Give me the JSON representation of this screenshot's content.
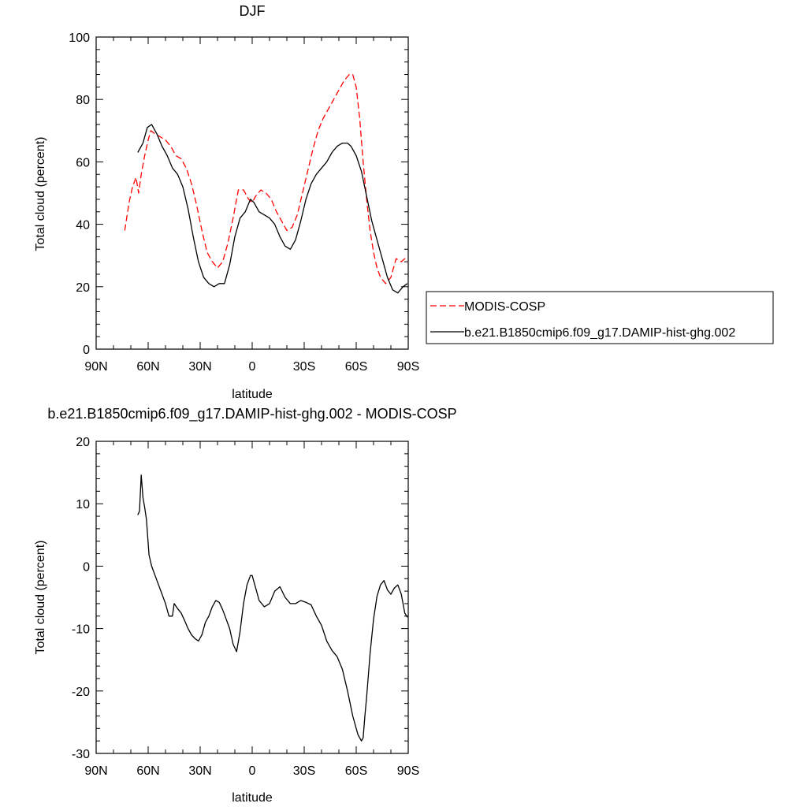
{
  "chart_data": [
    {
      "type": "line",
      "title": "DJF",
      "xlabel": "latitude",
      "ylabel": "Total cloud (percent)",
      "xlim": [
        90,
        -90
      ],
      "ylim": [
        0,
        100
      ],
      "xticks": [
        90,
        60,
        30,
        0,
        -30,
        -60,
        -90
      ],
      "xtick_labels": [
        "90N",
        "60N",
        "30N",
        "0",
        "30S",
        "60S",
        "90S"
      ],
      "yticks": [
        0,
        20,
        40,
        60,
        80,
        100
      ],
      "ytick_labels": [
        "0",
        "20",
        "40",
        "60",
        "80",
        "100"
      ],
      "grid": false,
      "legend_position": "right",
      "series": [
        {
          "name": "MODIS-COSP",
          "color": "#ff0000",
          "dash": "dashed",
          "x": [
            73.5,
            71,
            69,
            67,
            65.5,
            64,
            62,
            60,
            58.5,
            56,
            53,
            50,
            47,
            44,
            41,
            38,
            35,
            32,
            29,
            26,
            23,
            20,
            17,
            14,
            11,
            8,
            5,
            2,
            0,
            -2,
            -5,
            -8,
            -11,
            -14,
            -17,
            -20,
            -23,
            -26,
            -29,
            -32,
            -35,
            -38,
            -41,
            -44,
            -47,
            -50,
            -53,
            -56,
            -58,
            -60,
            -62,
            -64,
            -66,
            -68,
            -70,
            -72,
            -74,
            -77,
            -80,
            -83,
            -86,
            -88,
            -89.5
          ],
          "y": [
            38,
            47,
            52,
            55,
            50,
            56,
            62,
            67,
            70,
            69,
            68,
            67,
            65,
            62,
            61,
            58,
            53,
            46,
            38,
            31,
            28,
            26,
            28,
            34,
            42,
            51,
            51,
            48,
            47,
            49,
            51,
            50,
            48,
            44,
            41,
            38,
            39,
            43,
            50,
            57,
            64,
            70,
            74,
            77,
            80,
            83,
            86,
            88,
            88,
            84,
            74,
            60,
            48,
            38,
            31,
            26,
            23,
            21,
            23,
            29,
            28,
            29,
            28
          ]
        },
        {
          "name": "b.e21.B1850cmip6.f09_g17.DAMIP-hist-ghg.002",
          "color": "#000000",
          "dash": "solid",
          "x": [
            66,
            63,
            60.5,
            58,
            55,
            52,
            49,
            46,
            43,
            40,
            37,
            34,
            31,
            28,
            25,
            22,
            19,
            16,
            13,
            10,
            7,
            4,
            1,
            -1,
            -4,
            -7,
            -10,
            -13,
            -16,
            -19,
            -22,
            -25,
            -28,
            -31,
            -34,
            -37,
            -40,
            -43,
            -46,
            -49,
            -52,
            -55,
            -57,
            -60,
            -63,
            -66,
            -69,
            -72,
            -75,
            -78,
            -81,
            -84,
            -87,
            -89.5
          ],
          "y": [
            63,
            66,
            71,
            72,
            69,
            65,
            62,
            58,
            56,
            52,
            45,
            36,
            28,
            23,
            21,
            20,
            21,
            21,
            27,
            36,
            42,
            44,
            48,
            47,
            44,
            43,
            42,
            40,
            36,
            33,
            32,
            35,
            41,
            48,
            53,
            56,
            58,
            60,
            63,
            65,
            66,
            66,
            65,
            62,
            57,
            49,
            41,
            35,
            29,
            23,
            19,
            18,
            20,
            21
          ]
        }
      ]
    },
    {
      "type": "line",
      "title": "b.e21.B1850cmip6.f09_g17.DAMIP-hist-ghg.002 - MODIS-COSP",
      "xlabel": "latitude",
      "ylabel": "Total cloud (percent)",
      "xlim": [
        90,
        -90
      ],
      "ylim": [
        -30,
        20
      ],
      "xticks": [
        90,
        60,
        30,
        0,
        -30,
        -60,
        -90
      ],
      "xtick_labels": [
        "90N",
        "60N",
        "30N",
        "0",
        "30S",
        "60S",
        "90S"
      ],
      "yticks": [
        -30,
        -20,
        -10,
        0,
        10,
        20
      ],
      "ytick_labels": [
        "-30",
        "-20",
        "-10",
        "0",
        "10",
        "20"
      ],
      "grid": false,
      "series": [
        {
          "color": "#000000",
          "dash": "solid",
          "x": [
            66,
            65,
            64,
            63,
            62,
            61,
            59.5,
            58,
            56,
            54,
            52,
            50,
            48,
            46,
            45,
            43,
            41,
            39,
            37,
            35,
            33,
            31,
            29,
            27,
            25,
            23,
            21,
            19,
            17,
            15,
            13,
            11,
            9,
            7,
            5,
            3,
            1,
            0,
            -2,
            -4,
            -7,
            -10,
            -13,
            -16,
            -19,
            -22,
            -25,
            -28,
            -31,
            -34,
            -37,
            -40,
            -43,
            -46,
            -49,
            -52,
            -55,
            -58,
            -61,
            -63,
            -64,
            -65,
            -66,
            -67,
            -68,
            -70,
            -72,
            -74,
            -76,
            -78,
            -80,
            -82,
            -84,
            -86,
            -88,
            -89.5
          ],
          "y": [
            8.2,
            8.8,
            14.6,
            11,
            9.4,
            7.5,
            1.8,
            0,
            -1.5,
            -3,
            -4.5,
            -6,
            -8,
            -8,
            -6,
            -6.8,
            -7.5,
            -8.7,
            -10,
            -11,
            -11.6,
            -12,
            -11,
            -9,
            -8,
            -6.5,
            -5.5,
            -5.8,
            -7,
            -8.5,
            -10,
            -12.5,
            -13.7,
            -10.5,
            -6,
            -3,
            -1.5,
            -1.5,
            -3.5,
            -5.5,
            -6.5,
            -6,
            -4,
            -3.3,
            -5,
            -6,
            -6,
            -5.5,
            -5.8,
            -6.2,
            -8,
            -9.5,
            -12,
            -13.5,
            -14.5,
            -16.5,
            -20,
            -24,
            -27,
            -28,
            -27.5,
            -24,
            -21,
            -17.5,
            -14,
            -8.5,
            -4.8,
            -3,
            -2.3,
            -3.8,
            -4.5,
            -3.5,
            -3,
            -4.5,
            -7.5,
            -8.2
          ]
        }
      ]
    }
  ]
}
